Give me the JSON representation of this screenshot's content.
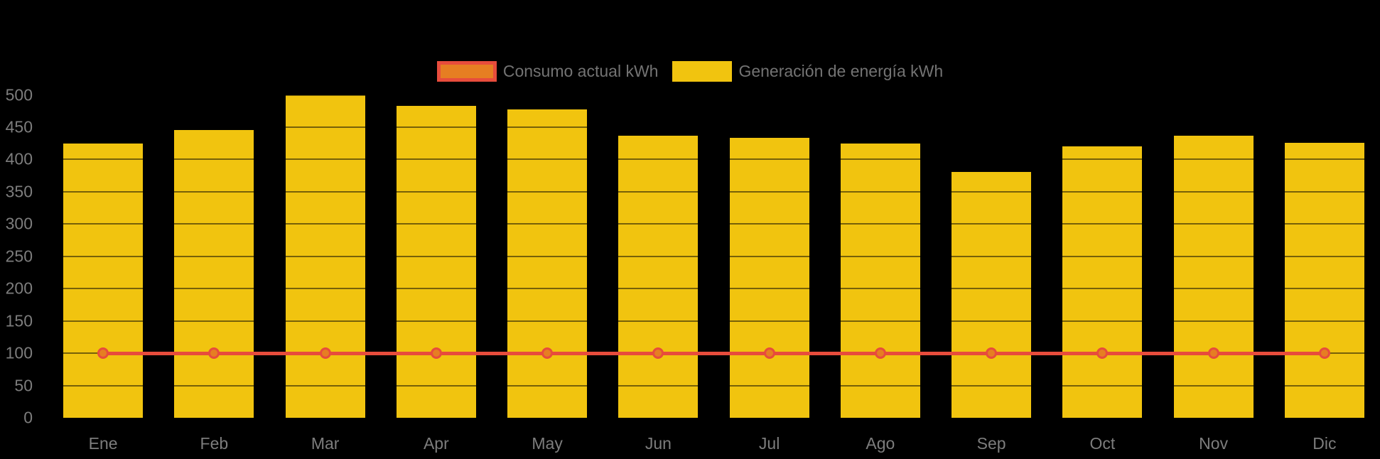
{
  "page": {
    "background": "#000000"
  },
  "legend": {
    "position": "top",
    "text_color": "#737373",
    "items": [
      {
        "label": "Consumo actual kWh",
        "swatch_fill": "#E67E22",
        "swatch_border": "#E74C3C",
        "series_type": "line"
      },
      {
        "label": "Generación de energía kWh",
        "swatch_fill": "#F1C40F",
        "swatch_border": "#F1C40F",
        "series_type": "bar"
      }
    ]
  },
  "chart_data": {
    "type": "bar",
    "categories": [
      "Ene",
      "Feb",
      "Mar",
      "Apr",
      "May",
      "Jun",
      "Jul",
      "Ago",
      "Sep",
      "Oct",
      "Nov",
      "Dic"
    ],
    "series": [
      {
        "name": "Consumo actual kWh",
        "type": "line",
        "color": "#E74C3C",
        "marker_fill": "#E67E22",
        "marker_border": "#E74C3C",
        "values": [
          100,
          100,
          100,
          100,
          100,
          100,
          100,
          100,
          100,
          100,
          100,
          100
        ]
      },
      {
        "name": "Generación de energía kWh",
        "type": "bar",
        "color": "#F1C40F",
        "values": [
          425,
          446,
          500,
          483,
          477,
          437,
          433,
          425,
          381,
          420,
          437,
          426
        ]
      }
    ],
    "xlabel": "",
    "ylabel": "",
    "ylim": [
      0,
      500
    ],
    "ytick_step": 50,
    "yticks": [
      "0",
      "50",
      "100",
      "150",
      "200",
      "250",
      "300",
      "350",
      "400",
      "450",
      "500"
    ],
    "grid": "horizontal gridlines, very faint, visible only across bars",
    "legend_position": "top",
    "axis_text_color": "#7d7d7d",
    "background": "#000000"
  }
}
